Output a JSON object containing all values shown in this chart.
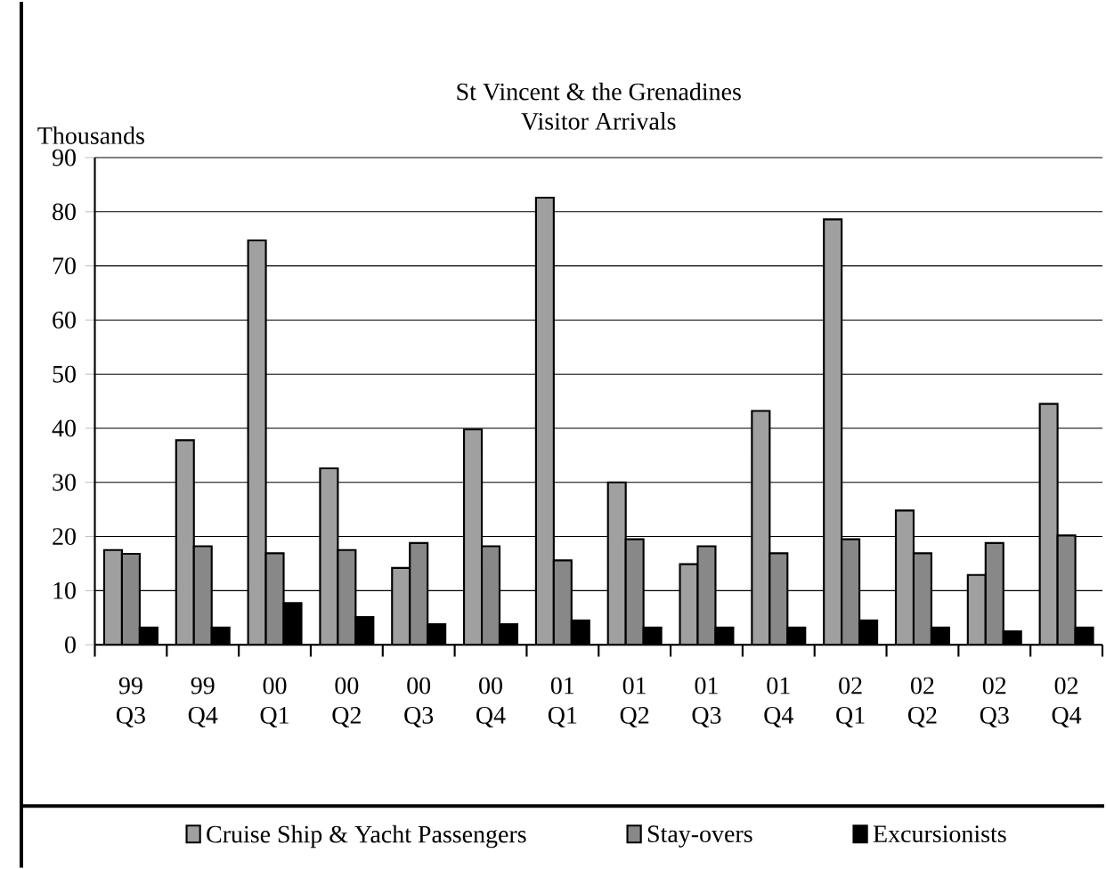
{
  "chart_data": {
    "type": "bar",
    "title": "St Vincent & the Grenadines",
    "subtitle": "Visitor Arrivals",
    "ylabel": "Thousands",
    "categories": [
      "99 Q3",
      "99 Q4",
      "00 Q1",
      "00 Q2",
      "00 Q3",
      "00 Q4",
      "01 Q1",
      "01 Q2",
      "01 Q3",
      "01 Q4",
      "02 Q1",
      "02 Q2",
      "02 Q3",
      "02 Q4"
    ],
    "series": [
      {
        "name": "Cruise Ship & Yacht Passengers",
        "color": "#a0a0a0",
        "values": [
          17.5,
          37.8,
          74.7,
          32.6,
          14.2,
          39.8,
          82.6,
          30.0,
          14.9,
          43.2,
          78.6,
          24.8,
          12.9,
          44.5
        ]
      },
      {
        "name": "Stay-overs",
        "color": "#888888",
        "values": [
          16.8,
          18.2,
          16.9,
          17.5,
          18.8,
          18.2,
          15.6,
          19.5,
          18.2,
          16.9,
          19.5,
          16.9,
          18.8,
          20.2
        ]
      },
      {
        "name": "Excursionists",
        "color": "#000000",
        "values": [
          3.2,
          3.2,
          7.7,
          5.1,
          3.8,
          3.8,
          4.5,
          3.2,
          3.2,
          3.2,
          4.5,
          3.2,
          2.5,
          3.2
        ]
      }
    ],
    "ylim": [
      0,
      90
    ],
    "yticks": [
      0,
      10,
      20,
      30,
      40,
      50,
      60,
      70,
      80,
      90
    ],
    "grid": "y",
    "legend": "bottom"
  }
}
